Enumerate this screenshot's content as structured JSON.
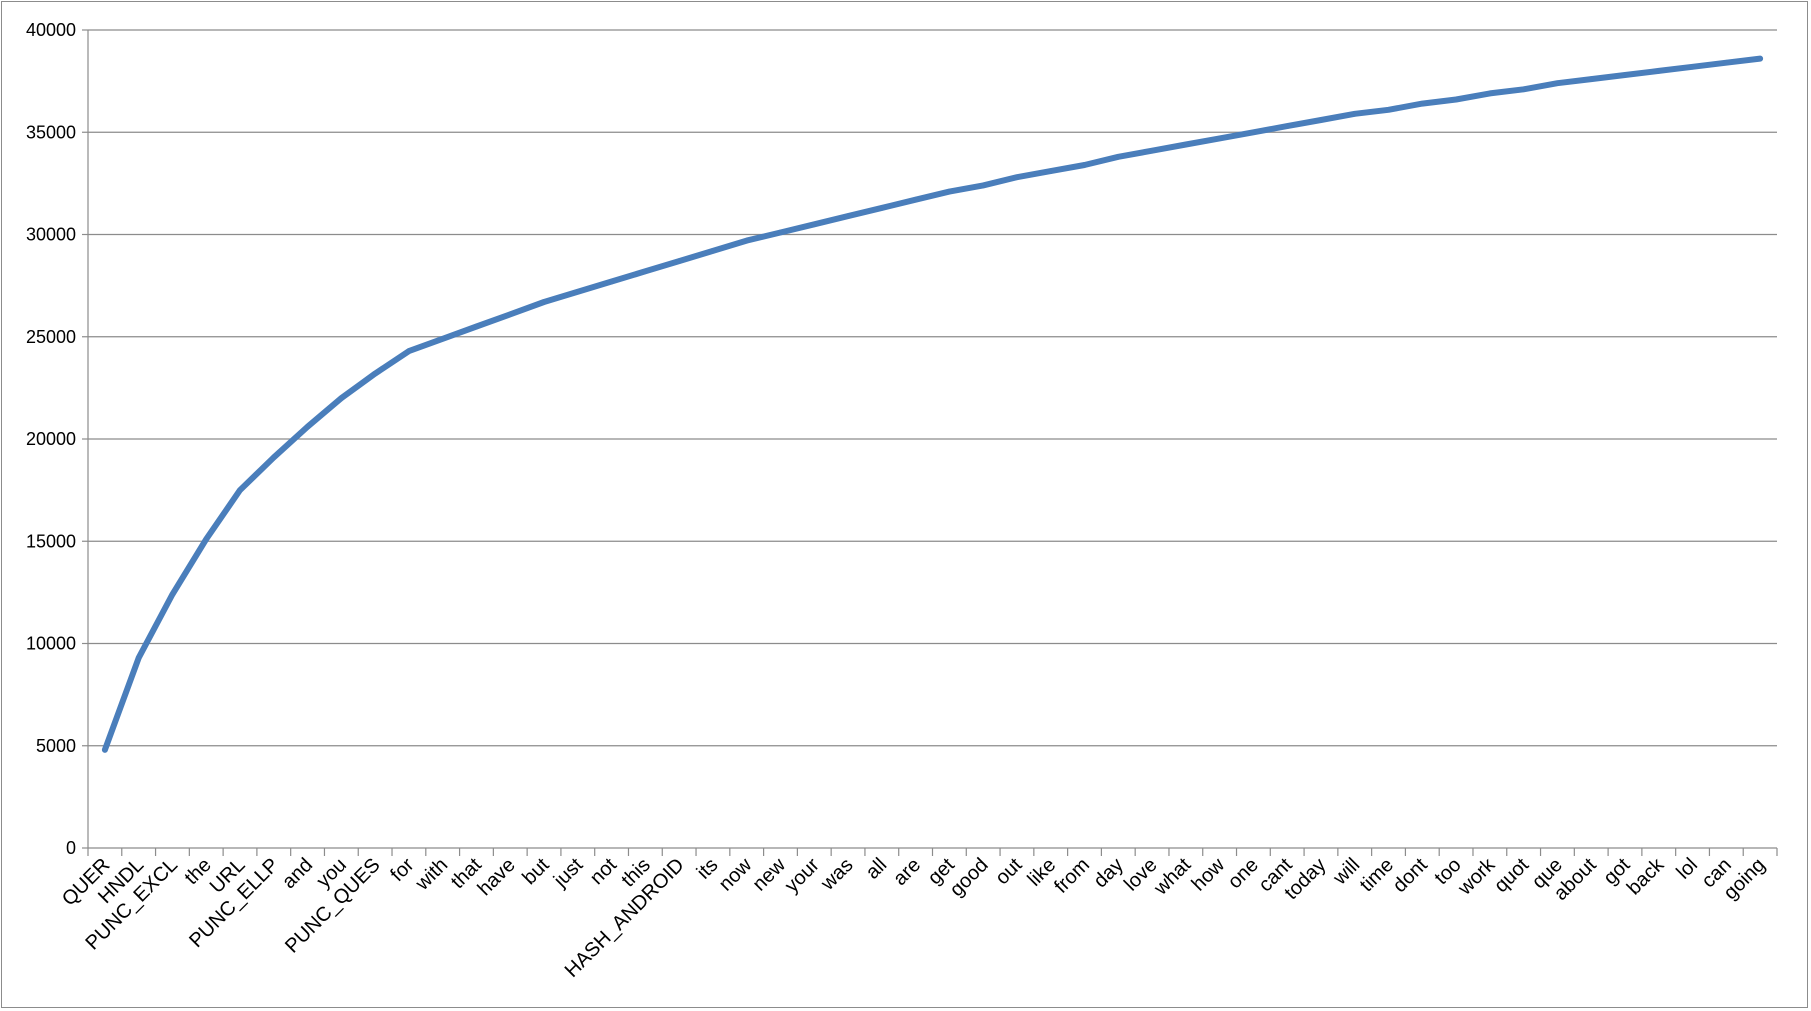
{
  "chart_data": {
    "type": "line",
    "title": "",
    "xlabel": "",
    "ylabel": "",
    "ylim": [
      0,
      40000
    ],
    "yticks": [
      0,
      5000,
      10000,
      15000,
      20000,
      25000,
      30000,
      35000,
      40000
    ],
    "grid": true,
    "legend": "none",
    "categories": [
      "QUER",
      "HNDL",
      "PUNC_EXCL",
      "the",
      "URL",
      "PUNC_ELLP",
      "and",
      "you",
      "PUNC_QUES",
      "for",
      "with",
      "that",
      "have",
      "but",
      "just",
      "not",
      "this",
      "HASH_ANDROID",
      "its",
      "now",
      "new",
      "your",
      "was",
      "all",
      "are",
      "get",
      "good",
      "out",
      "like",
      "from",
      "day",
      "love",
      "what",
      "how",
      "one",
      "cant",
      "today",
      "will",
      "time",
      "dont",
      "too",
      "work",
      "quot",
      "que",
      "about",
      "got",
      "back",
      "lol",
      "can",
      "going"
    ],
    "series": [
      {
        "color": "#4a7ebb",
        "values": [
          4800,
          9300,
          12400,
          15100,
          17500,
          19100,
          20600,
          22000,
          23200,
          24300,
          24900,
          25500,
          26100,
          26700,
          27200,
          27700,
          28200,
          28700,
          29200,
          29700,
          30100,
          30500,
          30900,
          31300,
          31700,
          32100,
          32400,
          32800,
          33100,
          33400,
          33800,
          34100,
          34400,
          34700,
          35000,
          35300,
          35600,
          35900,
          36100,
          36400,
          36600,
          36900,
          37100,
          37400,
          37600,
          37800,
          38000,
          38200,
          38400,
          38600
        ]
      }
    ]
  }
}
